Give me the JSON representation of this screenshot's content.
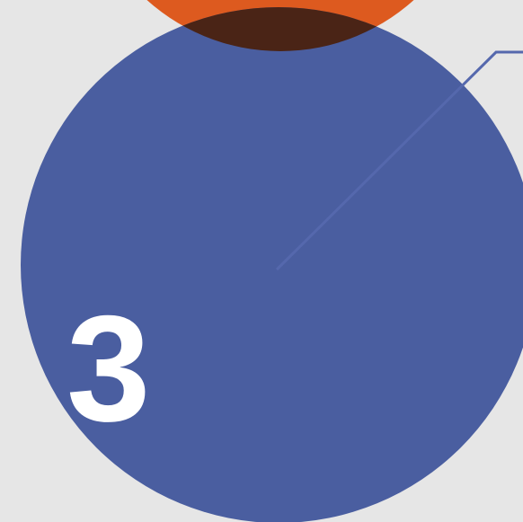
{
  "diagram": {
    "step_number": "3",
    "colors": {
      "background": "#e6e6e6",
      "main_circle": "#4a5ea0",
      "top_circle": "#dd5a1f",
      "overlap": "#4a2416",
      "leader_line": "#5568ad",
      "number_text": "#ffffff"
    },
    "shapes": {
      "main_circle_name": "main-step-circle",
      "top_circle_name": "top-step-circle",
      "overlap_name": "circle-overlap"
    }
  }
}
